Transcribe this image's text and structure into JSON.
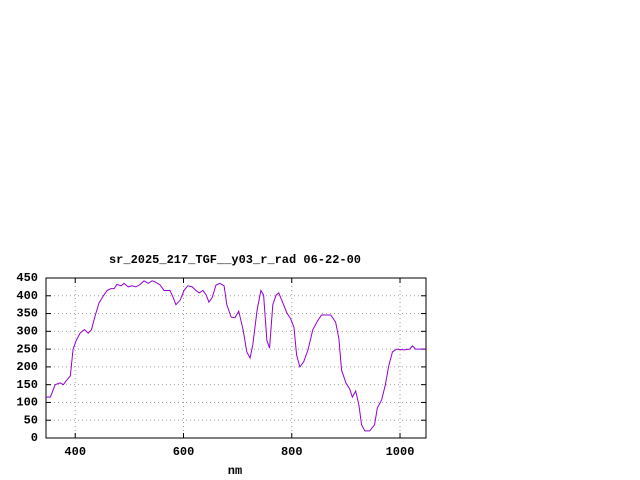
{
  "chart_data": {
    "type": "line",
    "title": "sr_2025_217_TGF__y03_r_rad 06-22-00",
    "x_label": "nm",
    "xlim": [
      346,
      1048
    ],
    "ylim": [
      0,
      450
    ],
    "xticks": [
      400,
      600,
      800,
      1000
    ],
    "yticks": [
      0,
      50,
      100,
      150,
      200,
      250,
      300,
      350,
      400,
      450
    ],
    "grid": true,
    "x": [
      346,
      354,
      363,
      372,
      378,
      383,
      391,
      396,
      402,
      409,
      417,
      424,
      430,
      437,
      444,
      452,
      459,
      466,
      472,
      477,
      485,
      490,
      498,
      505,
      512,
      520,
      527,
      535,
      542,
      549,
      557,
      564,
      575,
      581,
      586,
      594,
      601,
      608,
      616,
      623,
      629,
      636,
      642,
      647,
      653,
      660,
      667,
      675,
      680,
      688,
      695,
      702,
      710,
      717,
      723,
      728,
      736,
      743,
      748,
      754,
      759,
      765,
      771,
      776,
      783,
      791,
      798,
      804,
      809,
      815,
      822,
      830,
      839,
      848,
      855,
      872,
      881,
      887,
      892,
      900,
      907,
      912,
      918,
      924,
      929,
      935,
      944,
      953,
      958,
      966,
      973,
      979,
      986,
      994,
      1007,
      1018,
      1023,
      1029,
      1036,
      1047
    ],
    "series": [
      {
        "color": "#9400d3",
        "values": [
          115,
          115,
          150,
          155,
          150,
          160,
          175,
          250,
          275,
          295,
          305,
          295,
          305,
          345,
          380,
          400,
          415,
          420,
          420,
          432,
          428,
          435,
          425,
          428,
          425,
          432,
          442,
          435,
          442,
          438,
          430,
          415,
          415,
          395,
          375,
          388,
          415,
          428,
          425,
          415,
          408,
          415,
          402,
          382,
          395,
          430,
          435,
          428,
          375,
          340,
          338,
          357,
          305,
          242,
          225,
          262,
          360,
          415,
          402,
          275,
          253,
          375,
          402,
          408,
          382,
          352,
          335,
          312,
          233,
          200,
          214,
          248,
          305,
          330,
          346,
          346,
          326,
          280,
          191,
          155,
          138,
          115,
          132,
          93,
          37,
          20,
          20,
          37,
          84,
          107,
          150,
          202,
          242,
          250,
          248,
          250,
          259,
          250,
          250,
          250
        ]
      }
    ]
  }
}
